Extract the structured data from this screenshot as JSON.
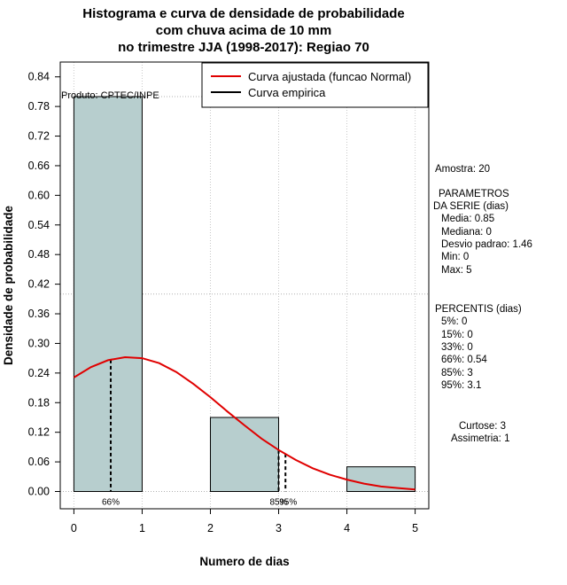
{
  "chart_data": {
    "type": "bar",
    "title_lines": [
      "Histograma e curva de densidade de probabilidade",
      "com chuva acima de 10 mm",
      "no trimestre JJA (1998-2017): Regiao 70"
    ],
    "xlabel": "Numero de dias",
    "ylabel": "Densidade de probabilidade",
    "xlim": [
      -0.2,
      5.2
    ],
    "ylim": [
      -0.035,
      0.87
    ],
    "x_ticks": [
      "0",
      "1",
      "2",
      "3",
      "4",
      "5"
    ],
    "y_ticks": [
      "0.00",
      "0.06",
      "0.12",
      "0.18",
      "0.24",
      "0.30",
      "0.36",
      "0.42",
      "0.48",
      "0.54",
      "0.60",
      "0.66",
      "0.72",
      "0.78",
      "0.84"
    ],
    "bins": [
      {
        "from": 0,
        "to": 1,
        "value": 0.8
      },
      {
        "from": 1,
        "to": 2,
        "value": 0.0
      },
      {
        "from": 2,
        "to": 3,
        "value": 0.15
      },
      {
        "from": 3,
        "to": 4,
        "value": 0.0
      },
      {
        "from": 4,
        "to": 5,
        "value": 0.05
      }
    ],
    "fitted_curve": {
      "name": "Curva ajustada (funcao Normal)",
      "color": "#e00000",
      "x": [
        0,
        0.25,
        0.5,
        0.75,
        1.0,
        1.25,
        1.5,
        1.75,
        2.0,
        2.25,
        2.5,
        2.75,
        3.0,
        3.25,
        3.5,
        3.75,
        4.0,
        4.25,
        4.5,
        4.75,
        5.0
      ],
      "y": [
        0.231,
        0.252,
        0.266,
        0.272,
        0.27,
        0.26,
        0.242,
        0.218,
        0.191,
        0.162,
        0.134,
        0.107,
        0.084,
        0.064,
        0.047,
        0.034,
        0.024,
        0.016,
        0.01,
        0.007,
        0.004
      ]
    },
    "empirical_curve": {
      "name": "Curva empirica",
      "color": "#000000"
    },
    "bar_fill": "#b7cece",
    "grid": true,
    "hline_y": 0.4,
    "legend_position": "top-right",
    "percentile_markers": [
      {
        "x": 0.54,
        "label": "66%"
      },
      {
        "x": 3.0,
        "label": "85%"
      },
      {
        "x": 3.1,
        "label": "95%"
      }
    ],
    "produced_by": "Produto: CPTEC/INPE"
  },
  "side_panel": {
    "sample": "Amostra: 20",
    "params_title": [
      "PARAMETROS",
      "DA SERIE (dias)"
    ],
    "params": [
      "Media: 0.85",
      "Mediana: 0",
      "Desvio padrao: 1.46",
      "Min: 0",
      "Max: 5"
    ],
    "percentis_title": "PERCENTIS (dias)",
    "percentis": [
      "5%: 0",
      "15%: 0",
      "33%: 0",
      "66%: 0.54",
      "85%: 3",
      "95%: 3.1"
    ],
    "curtose": "Curtose: 3",
    "assimetria": "Assimetria: 1"
  }
}
